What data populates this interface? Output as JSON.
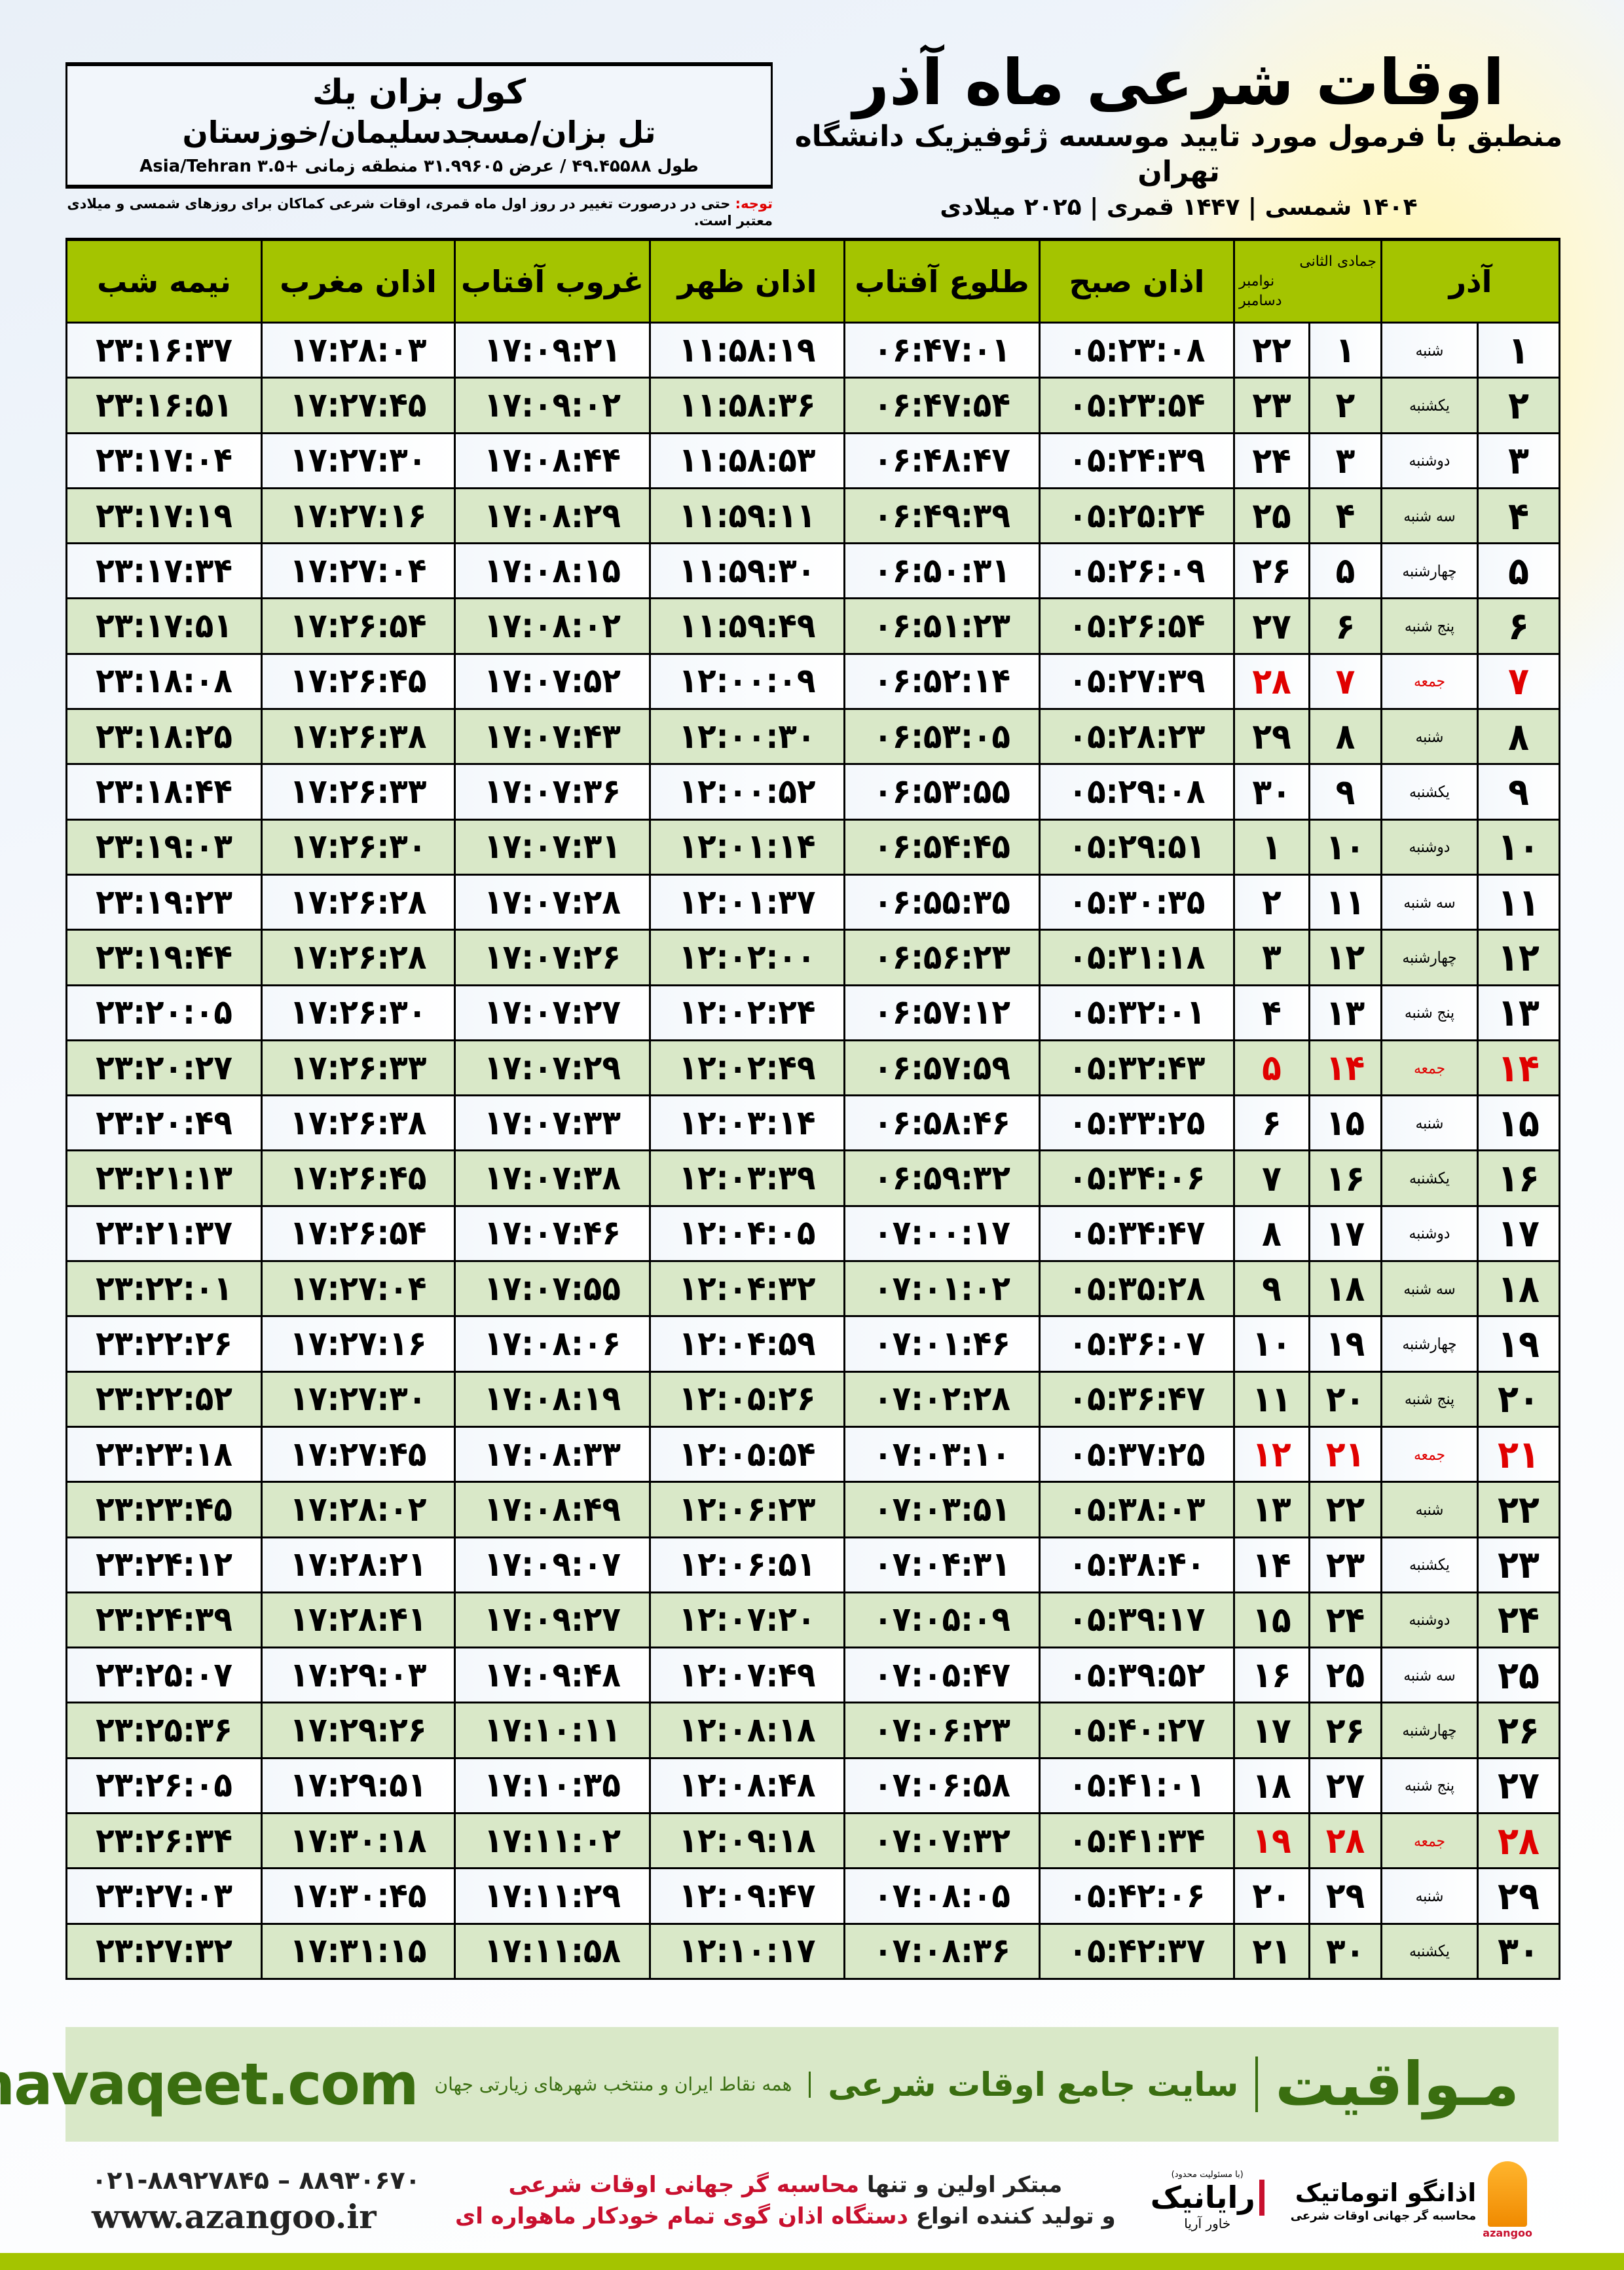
{
  "location": {
    "name": "کول بزان یك",
    "path": "تل بزان/مسجدسلیمان/خوزستان",
    "coords": "طول ۴۹.۴۵۵۸۸ / عرض ۳۱.۹۹۶۰۵ منطقه زمانی +۳.۵ Asia/Tehran"
  },
  "header": {
    "title": "اوقات شرعی ماه آذر",
    "subtitle": "منطبق با فرمول مورد تایید موسسه ژئوفیزیک دانشگاه تهران",
    "dates": "۱۴۰۴ شمسی | ۱۴۴۷ قمری | ۲۰۲۵ میلادی"
  },
  "note": {
    "label": "توجه:",
    "text": " حتی در درصورت تغییر در روز اول ماه قمری، اوقات شرعی کماکان برای روزهای شمسی و میلادی معتبر است."
  },
  "columns": {
    "azar": "آذر",
    "qamari": "جمادی الثانی",
    "miladi_top": "نوامبر",
    "miladi_bottom": "دسامبر",
    "sobh": "اذان صبح",
    "tolu": "طلوع آفتاب",
    "zohr": "اذان ظهر",
    "ghorub": "غروب آفتاب",
    "maghreb": "اذان مغرب",
    "nimeshab": "نیمه شب"
  },
  "colors": {
    "header_green": "#a4c400",
    "row_green": "#d9e8c8",
    "friday_red": "#e00000",
    "brand_green": "#3a6e10"
  },
  "rows": [
    {
      "azar": "۱",
      "weekday": "شنبه",
      "qamari": "۱",
      "miladi": "۲۲",
      "sobh": "۰۵:۲۳:۰۸",
      "tolu": "۰۶:۴۷:۰۱",
      "zohr": "۱۱:۵۸:۱۹",
      "ghorub": "۱۷:۰۹:۲۱",
      "maghreb": "۱۷:۲۸:۰۳",
      "nimeshab": "۲۳:۱۶:۳۷",
      "friday": false
    },
    {
      "azar": "۲",
      "weekday": "یکشنبه",
      "qamari": "۲",
      "miladi": "۲۳",
      "sobh": "۰۵:۲۳:۵۴",
      "tolu": "۰۶:۴۷:۵۴",
      "zohr": "۱۱:۵۸:۳۶",
      "ghorub": "۱۷:۰۹:۰۲",
      "maghreb": "۱۷:۲۷:۴۵",
      "nimeshab": "۲۳:۱۶:۵۱",
      "friday": false
    },
    {
      "azar": "۳",
      "weekday": "دوشنبه",
      "qamari": "۳",
      "miladi": "۲۴",
      "sobh": "۰۵:۲۴:۳۹",
      "tolu": "۰۶:۴۸:۴۷",
      "zohr": "۱۱:۵۸:۵۳",
      "ghorub": "۱۷:۰۸:۴۴",
      "maghreb": "۱۷:۲۷:۳۰",
      "nimeshab": "۲۳:۱۷:۰۴",
      "friday": false
    },
    {
      "azar": "۴",
      "weekday": "سه شنبه",
      "qamari": "۴",
      "miladi": "۲۵",
      "sobh": "۰۵:۲۵:۲۴",
      "tolu": "۰۶:۴۹:۳۹",
      "zohr": "۱۱:۵۹:۱۱",
      "ghorub": "۱۷:۰۸:۲۹",
      "maghreb": "۱۷:۲۷:۱۶",
      "nimeshab": "۲۳:۱۷:۱۹",
      "friday": false
    },
    {
      "azar": "۵",
      "weekday": "چهارشنبه",
      "qamari": "۵",
      "miladi": "۲۶",
      "sobh": "۰۵:۲۶:۰۹",
      "tolu": "۰۶:۵۰:۳۱",
      "zohr": "۱۱:۵۹:۳۰",
      "ghorub": "۱۷:۰۸:۱۵",
      "maghreb": "۱۷:۲۷:۰۴",
      "nimeshab": "۲۳:۱۷:۳۴",
      "friday": false
    },
    {
      "azar": "۶",
      "weekday": "پنج شنبه",
      "qamari": "۶",
      "miladi": "۲۷",
      "sobh": "۰۵:۲۶:۵۴",
      "tolu": "۰۶:۵۱:۲۳",
      "zohr": "۱۱:۵۹:۴۹",
      "ghorub": "۱۷:۰۸:۰۲",
      "maghreb": "۱۷:۲۶:۵۴",
      "nimeshab": "۲۳:۱۷:۵۱",
      "friday": false
    },
    {
      "azar": "۷",
      "weekday": "جمعه",
      "qamari": "۷",
      "miladi": "۲۸",
      "sobh": "۰۵:۲۷:۳۹",
      "tolu": "۰۶:۵۲:۱۴",
      "zohr": "۱۲:۰۰:۰۹",
      "ghorub": "۱۷:۰۷:۵۲",
      "maghreb": "۱۷:۲۶:۴۵",
      "nimeshab": "۲۳:۱۸:۰۸",
      "friday": true
    },
    {
      "azar": "۸",
      "weekday": "شنبه",
      "qamari": "۸",
      "miladi": "۲۹",
      "sobh": "۰۵:۲۸:۲۳",
      "tolu": "۰۶:۵۳:۰۵",
      "zohr": "۱۲:۰۰:۳۰",
      "ghorub": "۱۷:۰۷:۴۳",
      "maghreb": "۱۷:۲۶:۳۸",
      "nimeshab": "۲۳:۱۸:۲۵",
      "friday": false
    },
    {
      "azar": "۹",
      "weekday": "یکشنبه",
      "qamari": "۹",
      "miladi": "۳۰",
      "sobh": "۰۵:۲۹:۰۸",
      "tolu": "۰۶:۵۳:۵۵",
      "zohr": "۱۲:۰۰:۵۲",
      "ghorub": "۱۷:۰۷:۳۶",
      "maghreb": "۱۷:۲۶:۳۳",
      "nimeshab": "۲۳:۱۸:۴۴",
      "friday": false
    },
    {
      "azar": "۱۰",
      "weekday": "دوشنبه",
      "qamari": "۱۰",
      "miladi": "۱",
      "sobh": "۰۵:۲۹:۵۱",
      "tolu": "۰۶:۵۴:۴۵",
      "zohr": "۱۲:۰۱:۱۴",
      "ghorub": "۱۷:۰۷:۳۱",
      "maghreb": "۱۷:۲۶:۳۰",
      "nimeshab": "۲۳:۱۹:۰۳",
      "friday": false
    },
    {
      "azar": "۱۱",
      "weekday": "سه شنبه",
      "qamari": "۱۱",
      "miladi": "۲",
      "sobh": "۰۵:۳۰:۳۵",
      "tolu": "۰۶:۵۵:۳۵",
      "zohr": "۱۲:۰۱:۳۷",
      "ghorub": "۱۷:۰۷:۲۸",
      "maghreb": "۱۷:۲۶:۲۸",
      "nimeshab": "۲۳:۱۹:۲۳",
      "friday": false
    },
    {
      "azar": "۱۲",
      "weekday": "چهارشنبه",
      "qamari": "۱۲",
      "miladi": "۳",
      "sobh": "۰۵:۳۱:۱۸",
      "tolu": "۰۶:۵۶:۲۳",
      "zohr": "۱۲:۰۲:۰۰",
      "ghorub": "۱۷:۰۷:۲۶",
      "maghreb": "۱۷:۲۶:۲۸",
      "nimeshab": "۲۳:۱۹:۴۴",
      "friday": false
    },
    {
      "azar": "۱۳",
      "weekday": "پنج شنبه",
      "qamari": "۱۳",
      "miladi": "۴",
      "sobh": "۰۵:۳۲:۰۱",
      "tolu": "۰۶:۵۷:۱۲",
      "zohr": "۱۲:۰۲:۲۴",
      "ghorub": "۱۷:۰۷:۲۷",
      "maghreb": "۱۷:۲۶:۳۰",
      "nimeshab": "۲۳:۲۰:۰۵",
      "friday": false
    },
    {
      "azar": "۱۴",
      "weekday": "جمعه",
      "qamari": "۱۴",
      "miladi": "۵",
      "sobh": "۰۵:۳۲:۴۳",
      "tolu": "۰۶:۵۷:۵۹",
      "zohr": "۱۲:۰۲:۴۹",
      "ghorub": "۱۷:۰۷:۲۹",
      "maghreb": "۱۷:۲۶:۳۳",
      "nimeshab": "۲۳:۲۰:۲۷",
      "friday": true
    },
    {
      "azar": "۱۵",
      "weekday": "شنبه",
      "qamari": "۱۵",
      "miladi": "۶",
      "sobh": "۰۵:۳۳:۲۵",
      "tolu": "۰۶:۵۸:۴۶",
      "zohr": "۱۲:۰۳:۱۴",
      "ghorub": "۱۷:۰۷:۳۳",
      "maghreb": "۱۷:۲۶:۳۸",
      "nimeshab": "۲۳:۲۰:۴۹",
      "friday": false
    },
    {
      "azar": "۱۶",
      "weekday": "یکشنبه",
      "qamari": "۱۶",
      "miladi": "۷",
      "sobh": "۰۵:۳۴:۰۶",
      "tolu": "۰۶:۵۹:۳۲",
      "zohr": "۱۲:۰۳:۳۹",
      "ghorub": "۱۷:۰۷:۳۸",
      "maghreb": "۱۷:۲۶:۴۵",
      "nimeshab": "۲۳:۲۱:۱۳",
      "friday": false
    },
    {
      "azar": "۱۷",
      "weekday": "دوشنبه",
      "qamari": "۱۷",
      "miladi": "۸",
      "sobh": "۰۵:۳۴:۴۷",
      "tolu": "۰۷:۰۰:۱۷",
      "zohr": "۱۲:۰۴:۰۵",
      "ghorub": "۱۷:۰۷:۴۶",
      "maghreb": "۱۷:۲۶:۵۴",
      "nimeshab": "۲۳:۲۱:۳۷",
      "friday": false
    },
    {
      "azar": "۱۸",
      "weekday": "سه شنبه",
      "qamari": "۱۸",
      "miladi": "۹",
      "sobh": "۰۵:۳۵:۲۸",
      "tolu": "۰۷:۰۱:۰۲",
      "zohr": "۱۲:۰۴:۳۲",
      "ghorub": "۱۷:۰۷:۵۵",
      "maghreb": "۱۷:۲۷:۰۴",
      "nimeshab": "۲۳:۲۲:۰۱",
      "friday": false
    },
    {
      "azar": "۱۹",
      "weekday": "چهارشنبه",
      "qamari": "۱۹",
      "miladi": "۱۰",
      "sobh": "۰۵:۳۶:۰۷",
      "tolu": "۰۷:۰۱:۴۶",
      "zohr": "۱۲:۰۴:۵۹",
      "ghorub": "۱۷:۰۸:۰۶",
      "maghreb": "۱۷:۲۷:۱۶",
      "nimeshab": "۲۳:۲۲:۲۶",
      "friday": false
    },
    {
      "azar": "۲۰",
      "weekday": "پنج شنبه",
      "qamari": "۲۰",
      "miladi": "۱۱",
      "sobh": "۰۵:۳۶:۴۷",
      "tolu": "۰۷:۰۲:۲۸",
      "zohr": "۱۲:۰۵:۲۶",
      "ghorub": "۱۷:۰۸:۱۹",
      "maghreb": "۱۷:۲۷:۳۰",
      "nimeshab": "۲۳:۲۲:۵۲",
      "friday": false
    },
    {
      "azar": "۲۱",
      "weekday": "جمعه",
      "qamari": "۲۱",
      "miladi": "۱۲",
      "sobh": "۰۵:۳۷:۲۵",
      "tolu": "۰۷:۰۳:۱۰",
      "zohr": "۱۲:۰۵:۵۴",
      "ghorub": "۱۷:۰۸:۳۳",
      "maghreb": "۱۷:۲۷:۴۵",
      "nimeshab": "۲۳:۲۳:۱۸",
      "friday": true
    },
    {
      "azar": "۲۲",
      "weekday": "شنبه",
      "qamari": "۲۲",
      "miladi": "۱۳",
      "sobh": "۰۵:۳۸:۰۳",
      "tolu": "۰۷:۰۳:۵۱",
      "zohr": "۱۲:۰۶:۲۳",
      "ghorub": "۱۷:۰۸:۴۹",
      "maghreb": "۱۷:۲۸:۰۲",
      "nimeshab": "۲۳:۲۳:۴۵",
      "friday": false
    },
    {
      "azar": "۲۳",
      "weekday": "یکشنبه",
      "qamari": "۲۳",
      "miladi": "۱۴",
      "sobh": "۰۵:۳۸:۴۰",
      "tolu": "۰۷:۰۴:۳۱",
      "zohr": "۱۲:۰۶:۵۱",
      "ghorub": "۱۷:۰۹:۰۷",
      "maghreb": "۱۷:۲۸:۲۱",
      "nimeshab": "۲۳:۲۴:۱۲",
      "friday": false
    },
    {
      "azar": "۲۴",
      "weekday": "دوشنبه",
      "qamari": "۲۴",
      "miladi": "۱۵",
      "sobh": "۰۵:۳۹:۱۷",
      "tolu": "۰۷:۰۵:۰۹",
      "zohr": "۱۲:۰۷:۲۰",
      "ghorub": "۱۷:۰۹:۲۷",
      "maghreb": "۱۷:۲۸:۴۱",
      "nimeshab": "۲۳:۲۴:۳۹",
      "friday": false
    },
    {
      "azar": "۲۵",
      "weekday": "سه شنبه",
      "qamari": "۲۵",
      "miladi": "۱۶",
      "sobh": "۰۵:۳۹:۵۲",
      "tolu": "۰۷:۰۵:۴۷",
      "zohr": "۱۲:۰۷:۴۹",
      "ghorub": "۱۷:۰۹:۴۸",
      "maghreb": "۱۷:۲۹:۰۳",
      "nimeshab": "۲۳:۲۵:۰۷",
      "friday": false
    },
    {
      "azar": "۲۶",
      "weekday": "چهارشنبه",
      "qamari": "۲۶",
      "miladi": "۱۷",
      "sobh": "۰۵:۴۰:۲۷",
      "tolu": "۰۷:۰۶:۲۳",
      "zohr": "۱۲:۰۸:۱۸",
      "ghorub": "۱۷:۱۰:۱۱",
      "maghreb": "۱۷:۲۹:۲۶",
      "nimeshab": "۲۳:۲۵:۳۶",
      "friday": false
    },
    {
      "azar": "۲۷",
      "weekday": "پنج شنبه",
      "qamari": "۲۷",
      "miladi": "۱۸",
      "sobh": "۰۵:۴۱:۰۱",
      "tolu": "۰۷:۰۶:۵۸",
      "zohr": "۱۲:۰۸:۴۸",
      "ghorub": "۱۷:۱۰:۳۵",
      "maghreb": "۱۷:۲۹:۵۱",
      "nimeshab": "۲۳:۲۶:۰۵",
      "friday": false
    },
    {
      "azar": "۲۸",
      "weekday": "جمعه",
      "qamari": "۲۸",
      "miladi": "۱۹",
      "sobh": "۰۵:۴۱:۳۴",
      "tolu": "۰۷:۰۷:۳۲",
      "zohr": "۱۲:۰۹:۱۸",
      "ghorub": "۱۷:۱۱:۰۲",
      "maghreb": "۱۷:۳۰:۱۸",
      "nimeshab": "۲۳:۲۶:۳۴",
      "friday": true
    },
    {
      "azar": "۲۹",
      "weekday": "شنبه",
      "qamari": "۲۹",
      "miladi": "۲۰",
      "sobh": "۰۵:۴۲:۰۶",
      "tolu": "۰۷:۰۸:۰۵",
      "zohr": "۱۲:۰۹:۴۷",
      "ghorub": "۱۷:۱۱:۲۹",
      "maghreb": "۱۷:۳۰:۴۵",
      "nimeshab": "۲۳:۲۷:۰۳",
      "friday": false
    },
    {
      "azar": "۳۰",
      "weekday": "یکشنبه",
      "qamari": "۳۰",
      "miladi": "۲۱",
      "sobh": "۰۵:۴۲:۳۷",
      "tolu": "۰۷:۰۸:۳۶",
      "zohr": "۱۲:۱۰:۱۷",
      "ghorub": "۱۷:۱۱:۵۸",
      "maghreb": "۱۷:۳۱:۱۵",
      "nimeshab": "۲۳:۲۷:۳۲",
      "friday": false
    }
  ],
  "footer": {
    "brand": "مـواقیت",
    "tagline": "سایت جامع اوقات شرعی",
    "tagline_sub": "همه نقاط ایران و منتخب شهرهای زیارتی جهان",
    "url": "mavaqeet.com",
    "slogan1_plain": "مبتکر اولین و تنها ",
    "slogan1_red": "محاسبه گر جهانی اوقات شرعی",
    "slogan2_plain": "و تولید کننده انواع ",
    "slogan2_red": "دستگاه اذان گوی تمام خودکار ماهواره ای",
    "phone": "۰۲۱-۸۸۹۲۷۸۴۵ – ۸۸۹۳۰۶۷۰",
    "website": "www.azangoo.ir",
    "raianik_note": "(با مسئولیت محدود)",
    "raianik_name": "رایانیک",
    "raianik_sub": "خاور آریا",
    "azangoo_name": "اذانگو اتوماتیک",
    "azangoo_sub": "محاسبه گر جهانی اوقات شرعی",
    "azangoo_latin": "azangoo"
  }
}
